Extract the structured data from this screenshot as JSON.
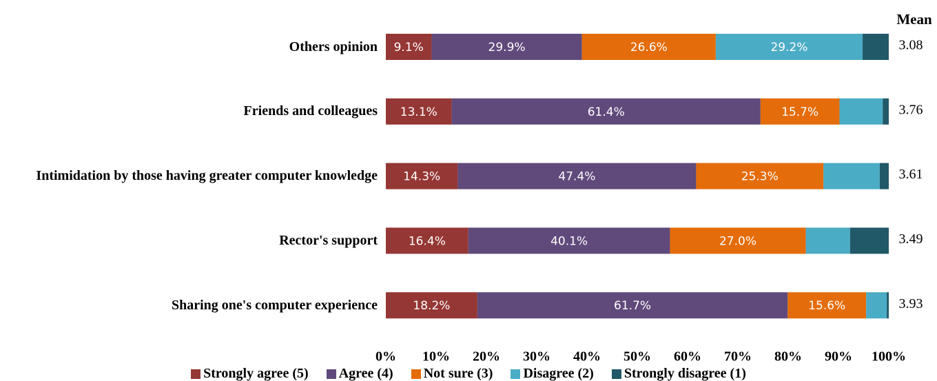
{
  "chart_data": {
    "type": "stacked_barh",
    "categories": [
      "Others opinion",
      "Friends and colleagues",
      "Intimidation by those having greater computer knowledge",
      "Rector's support",
      "Sharing one's computer experience"
    ],
    "series": [
      {
        "name": "Strongly agree (5)",
        "color": "#953735",
        "values": [
          9.1,
          13.1,
          14.3,
          16.4,
          18.2
        ],
        "value_labels": [
          "9.1%",
          "13.1%",
          "14.3%",
          "16.4%",
          "18.2%"
        ]
      },
      {
        "name": "Agree (4)",
        "color": "#604a7b",
        "values": [
          29.9,
          61.4,
          47.4,
          40.1,
          61.7
        ],
        "value_labels": [
          "29.9%",
          "61.4%",
          "47.4%",
          "40.1%",
          "61.7%"
        ]
      },
      {
        "name": "Not sure (3)",
        "color": "#e46c0a",
        "values": [
          26.6,
          15.7,
          25.3,
          27.0,
          15.6
        ],
        "value_labels": [
          "26.6%",
          "15.7%",
          "25.3%",
          "27.0%",
          "15.6%"
        ]
      },
      {
        "name": "Disagree (2)",
        "color": "#4bacc6",
        "values": [
          29.2,
          8.6,
          11.2,
          8.8,
          4.1
        ],
        "value_labels": [
          "29.2%",
          null,
          null,
          null,
          null
        ]
      },
      {
        "name": "Strongly disagree (1)",
        "color": "#215968",
        "values": [
          5.2,
          1.2,
          1.8,
          7.7,
          0.4
        ],
        "value_labels": [
          null,
          null,
          null,
          null,
          null
        ]
      }
    ],
    "mean_label": "Mean",
    "means": [
      3.08,
      3.76,
      3.61,
      3.49,
      3.93
    ],
    "xlim": [
      0,
      100
    ],
    "xticks": [
      {
        "value": 0,
        "label": "0%"
      },
      {
        "value": 10,
        "label": "10%"
      },
      {
        "value": 20,
        "label": "20%"
      },
      {
        "value": 30,
        "label": "30%"
      },
      {
        "value": 40,
        "label": "40%"
      },
      {
        "value": 50,
        "label": "50%"
      },
      {
        "value": 60,
        "label": "60%"
      },
      {
        "value": 70,
        "label": "70%"
      },
      {
        "value": 80,
        "label": "80%"
      },
      {
        "value": 90,
        "label": "90%"
      },
      {
        "value": 100,
        "label": "100%"
      }
    ],
    "legend": "bottom"
  }
}
